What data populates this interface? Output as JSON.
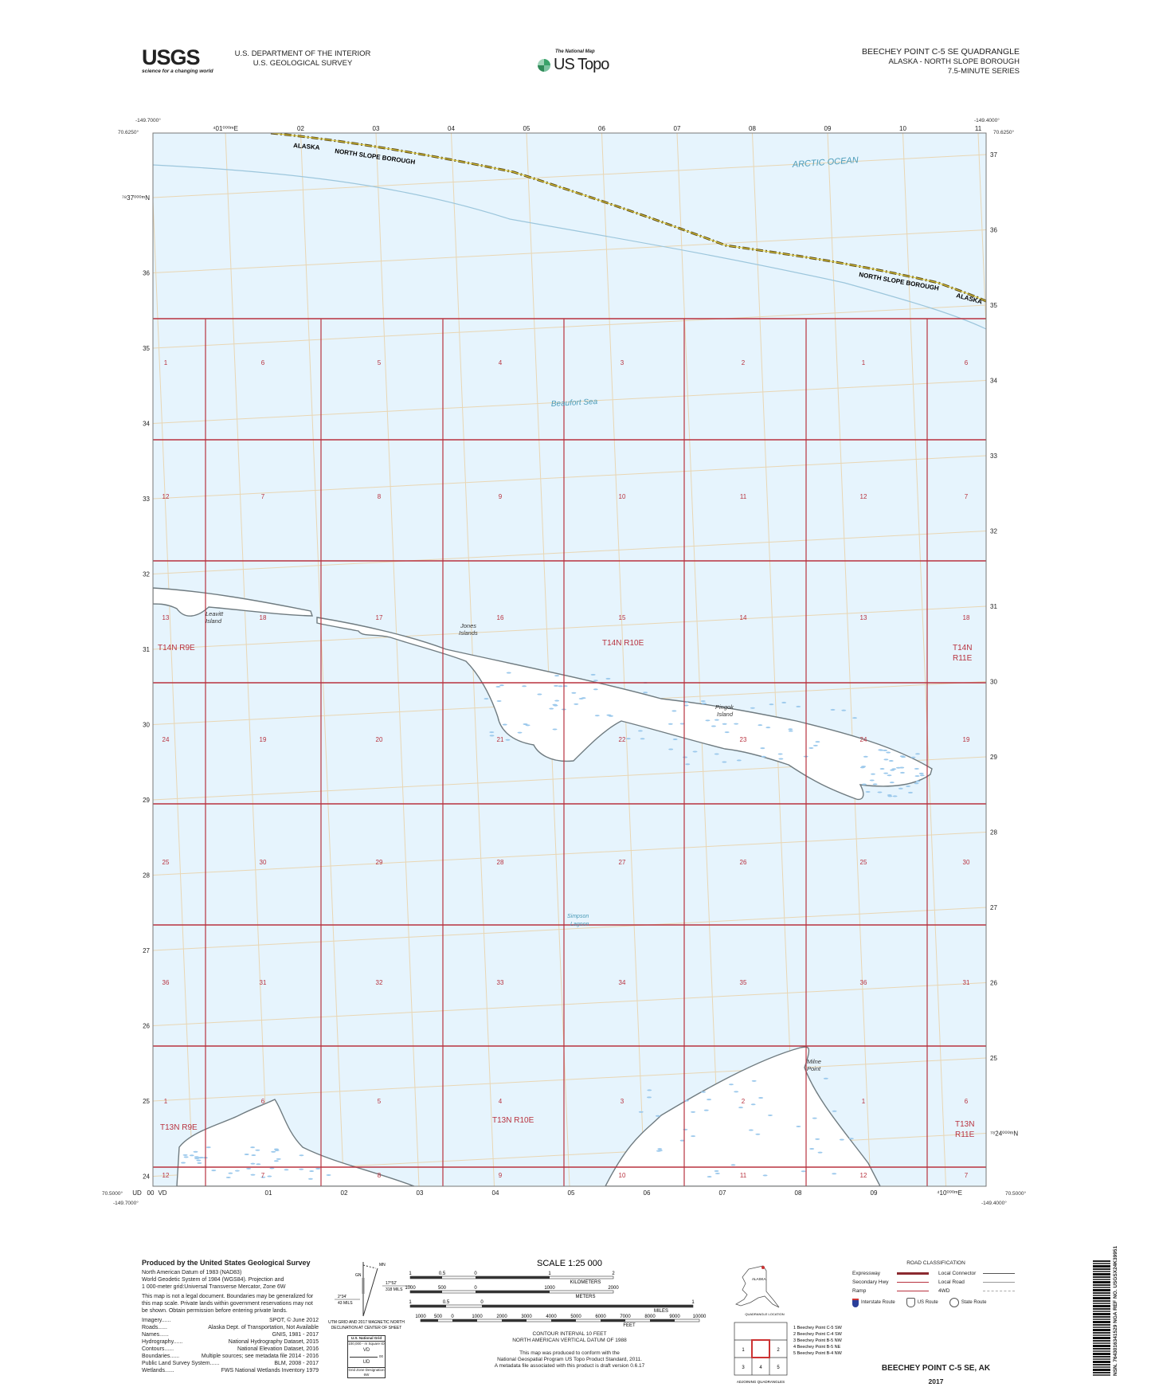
{
  "header": {
    "usgs_logo": "USGS",
    "usgs_tagline": "science for a changing world",
    "dept_line1": "U.S. DEPARTMENT OF THE INTERIOR",
    "dept_line2": "U.S. GEOLOGICAL SURVEY",
    "national_map": "The National Map",
    "us_topo": "US Topo",
    "quad_title": "BEECHEY POINT C-5 SE QUADRANGLE",
    "quad_state": "ALASKA - NORTH SLOPE BOROUGH",
    "quad_series": "7.5-MINUTE SERIES"
  },
  "map": {
    "colors": {
      "water": "#e6f4fd",
      "land": "#ffffff",
      "shore": "#6f7b80",
      "plss": "#b8323f",
      "utm": "#e8d6b4",
      "boundary": "#5a4a1a"
    },
    "corners": {
      "top_left_lon": "-149.7000°",
      "top_left_lat": "70.6250°",
      "top_right_lon": "-149.4000°",
      "top_right_lat": "70.6250°",
      "bottom_left_lat": "70.5000°",
      "bottom_left_lon": "-149.7000°",
      "bottom_right_lat": "70.5000°",
      "bottom_right_lon": "-149.4000°"
    },
    "top_ticks": [
      "⁴01⁰⁰⁰ᵐE",
      "02",
      "03",
      "04",
      "05",
      "06",
      "07",
      "08",
      "09",
      "10",
      "11"
    ],
    "bottom_ticks": [
      "UD",
      "00",
      "VD",
      "01",
      "02",
      "03",
      "04",
      "05",
      "06",
      "07",
      "08",
      "09",
      "⁴10⁰⁰⁰ᵐE"
    ],
    "left_ticks": [
      "⁷⁸37⁰⁰⁰ᵐN",
      "36",
      "35",
      "34",
      "33",
      "32",
      "31",
      "30",
      "29",
      "28",
      "27",
      "26",
      "25",
      "24"
    ],
    "right_ticks": [
      "37",
      "36",
      "35",
      "34",
      "33",
      "32",
      "31",
      "30",
      "29",
      "28",
      "27",
      "26",
      "25",
      "⁷⁸24⁰⁰⁰ᵐN"
    ],
    "sections": [
      [
        "1",
        "6",
        "5",
        "4",
        "3",
        "2",
        "1",
        "6"
      ],
      [
        "12",
        "7",
        "8",
        "9",
        "10",
        "11",
        "12",
        "7"
      ],
      [
        "13",
        "18",
        "17",
        "16",
        "15",
        "14",
        "13",
        "18"
      ],
      [
        "24",
        "19",
        "20",
        "21",
        "22",
        "23",
        "24",
        "19"
      ],
      [
        "25",
        "30",
        "29",
        "28",
        "27",
        "26",
        "25",
        "30"
      ],
      [
        "36",
        "31",
        "32",
        "33",
        "34",
        "35",
        "36",
        "31"
      ],
      [
        "1",
        "6",
        "5",
        "4",
        "3",
        "2",
        "1",
        "6"
      ],
      [
        "12",
        "7",
        "8",
        "9",
        "10",
        "11",
        "12",
        "7"
      ]
    ],
    "townships": {
      "t14n_r9e": "T14N R9E",
      "t14n_r10e": "T14N R10E",
      "t14n_r11e_1": "T14N",
      "t14n_r11e_2": "R11E",
      "t13n_r9e": "T13N R9E",
      "t13n_r10e": "T13N R10E",
      "t13n_r11e_1": "T13N",
      "t13n_r11e_2": "R11E"
    },
    "places": {
      "arctic_ocean": "ARCTIC OCEAN",
      "beaufort_sea": "Beaufort Sea",
      "leavitt_1": "Leavitt",
      "leavitt_2": "Island",
      "jones_1": "Jones",
      "jones_2": "Islands",
      "pingok_1": "Pingok",
      "pingok_2": "Island",
      "simpson_1": "Simpson",
      "simpson_2": "Lagoon",
      "milne_1": "Milne",
      "milne_2": "Point"
    },
    "boundary_labels": {
      "alaska_top": "ALASKA",
      "borough_top": "NORTH SLOPE BOROUGH",
      "borough_right": "NORTH SLOPE BOROUGH",
      "alaska_right": "ALASKA"
    }
  },
  "footer": {
    "produced_by": "Produced by the United States Geological Survey",
    "datum_lines": [
      "North American Datum of 1983 (NAD83)",
      "World Geodetic System of 1984 (WGS84).  Projection and",
      "1 000-meter grid:Universal Transverse Mercator, Zone 6W"
    ],
    "legal": "This map is not a legal document. Boundaries may be generalized for this map scale. Private lands within government reservations may not be shown. Obtain permission before entering private lands.",
    "sources": [
      {
        "name": "Imagery",
        "value": "SPOT, © June 2012"
      },
      {
        "name": "Roads",
        "value": "Alaska Dept. of Transportation, Not Available"
      },
      {
        "name": "Names",
        "value": "GNIS, 1981 - 2017"
      },
      {
        "name": "Hydrography",
        "value": "National Hydrography Dataset, 2015"
      },
      {
        "name": "Contours",
        "value": "National Elevation Dataset, 2016"
      },
      {
        "name": "Boundaries",
        "value": "Multiple sources; see metadata file 2014 - 2016"
      },
      {
        "name": "Public Land Survey System",
        "value": "BLM, 2008 - 2017"
      },
      {
        "name": "Wetlands",
        "value": "FWS National Wetlands Inventory 1979"
      }
    ],
    "declination": {
      "gn": "GN",
      "mn": "MN",
      "left_angle": "2°34'",
      "left_mils": "43 MILS",
      "right_angle": "17°52'",
      "right_mils": "318 MILS",
      "caption1": "UTM GRID AND 2017 MAGNETIC NORTH",
      "caption2": "DECLINATION AT CENTER OF SHEET"
    },
    "usng": {
      "title": "U.S. National Grid",
      "subtitle": "100,000 - m Square ID",
      "vd": "VD",
      "ud": "UD",
      "side": "00",
      "gzd_label": "Grid Zone Designation",
      "gzd": "6W"
    },
    "scale": {
      "title": "SCALE 1:25 000",
      "km_ticks": [
        "1",
        "0.5",
        "0",
        "1",
        "2"
      ],
      "km_label": "KILOMETERS",
      "m_ticks": [
        "1000",
        "500",
        "0",
        "1000",
        "2000"
      ],
      "m_label": "METERS",
      "mi_ticks": [
        "1",
        "0.5",
        "0",
        "1"
      ],
      "mi_label": "MILES",
      "ft_ticks": [
        "1000",
        "500",
        "0",
        "1000",
        "2000",
        "3000",
        "4000",
        "5000",
        "6000",
        "7000",
        "8000",
        "9000",
        "10000"
      ],
      "ft_label": "FEET"
    },
    "contour1": "CONTOUR INTERVAL 10 FEET",
    "contour2": "NORTH AMERICAN VERTICAL DATUM OF 1988",
    "standard1": "This map was produced to conform with the",
    "standard2": "National Geospatial Program US Topo Product Standard, 2011.",
    "standard3": "A metadata file associated with this product is draft version 0.6.17",
    "location": {
      "state": "ALASKA",
      "caption": "QUADRANGLE LOCATION"
    },
    "adjoining": {
      "caption": "ADJOINING QUADRANGLES",
      "cells": [
        "1",
        "2",
        "3",
        "4",
        "5"
      ],
      "list": [
        "1 Beechey Point C-5 SW",
        "2 Beechey Point C-4 SW",
        "3 Beechey Point B-5 NW",
        "4 Beechey Point B-5 NE",
        "5 Beechey Point B-4 NW"
      ]
    },
    "roads": {
      "title": "ROAD CLASSIFICATION",
      "items": [
        {
          "label": "Expressway",
          "color": "#8b2a2f"
        },
        {
          "label": "Local Connector",
          "color": "#555555"
        },
        {
          "label": "Secondary Hwy",
          "color": "#b8323f"
        },
        {
          "label": "Local Road",
          "color": "#999999"
        },
        {
          "label": "Ramp",
          "color": "#b8323f"
        },
        {
          "label": "4WD",
          "color": "#aaaaaa"
        }
      ],
      "interstate": "Interstate Route",
      "us_route": "US Route",
      "state_route": "State Route"
    },
    "sheet_title": "BEECHEY POINT C-5 SE,  AK",
    "year": "2017",
    "barcode_text": "NSN. 7643016341529 NGA REF NO. USGSX24K39951"
  }
}
